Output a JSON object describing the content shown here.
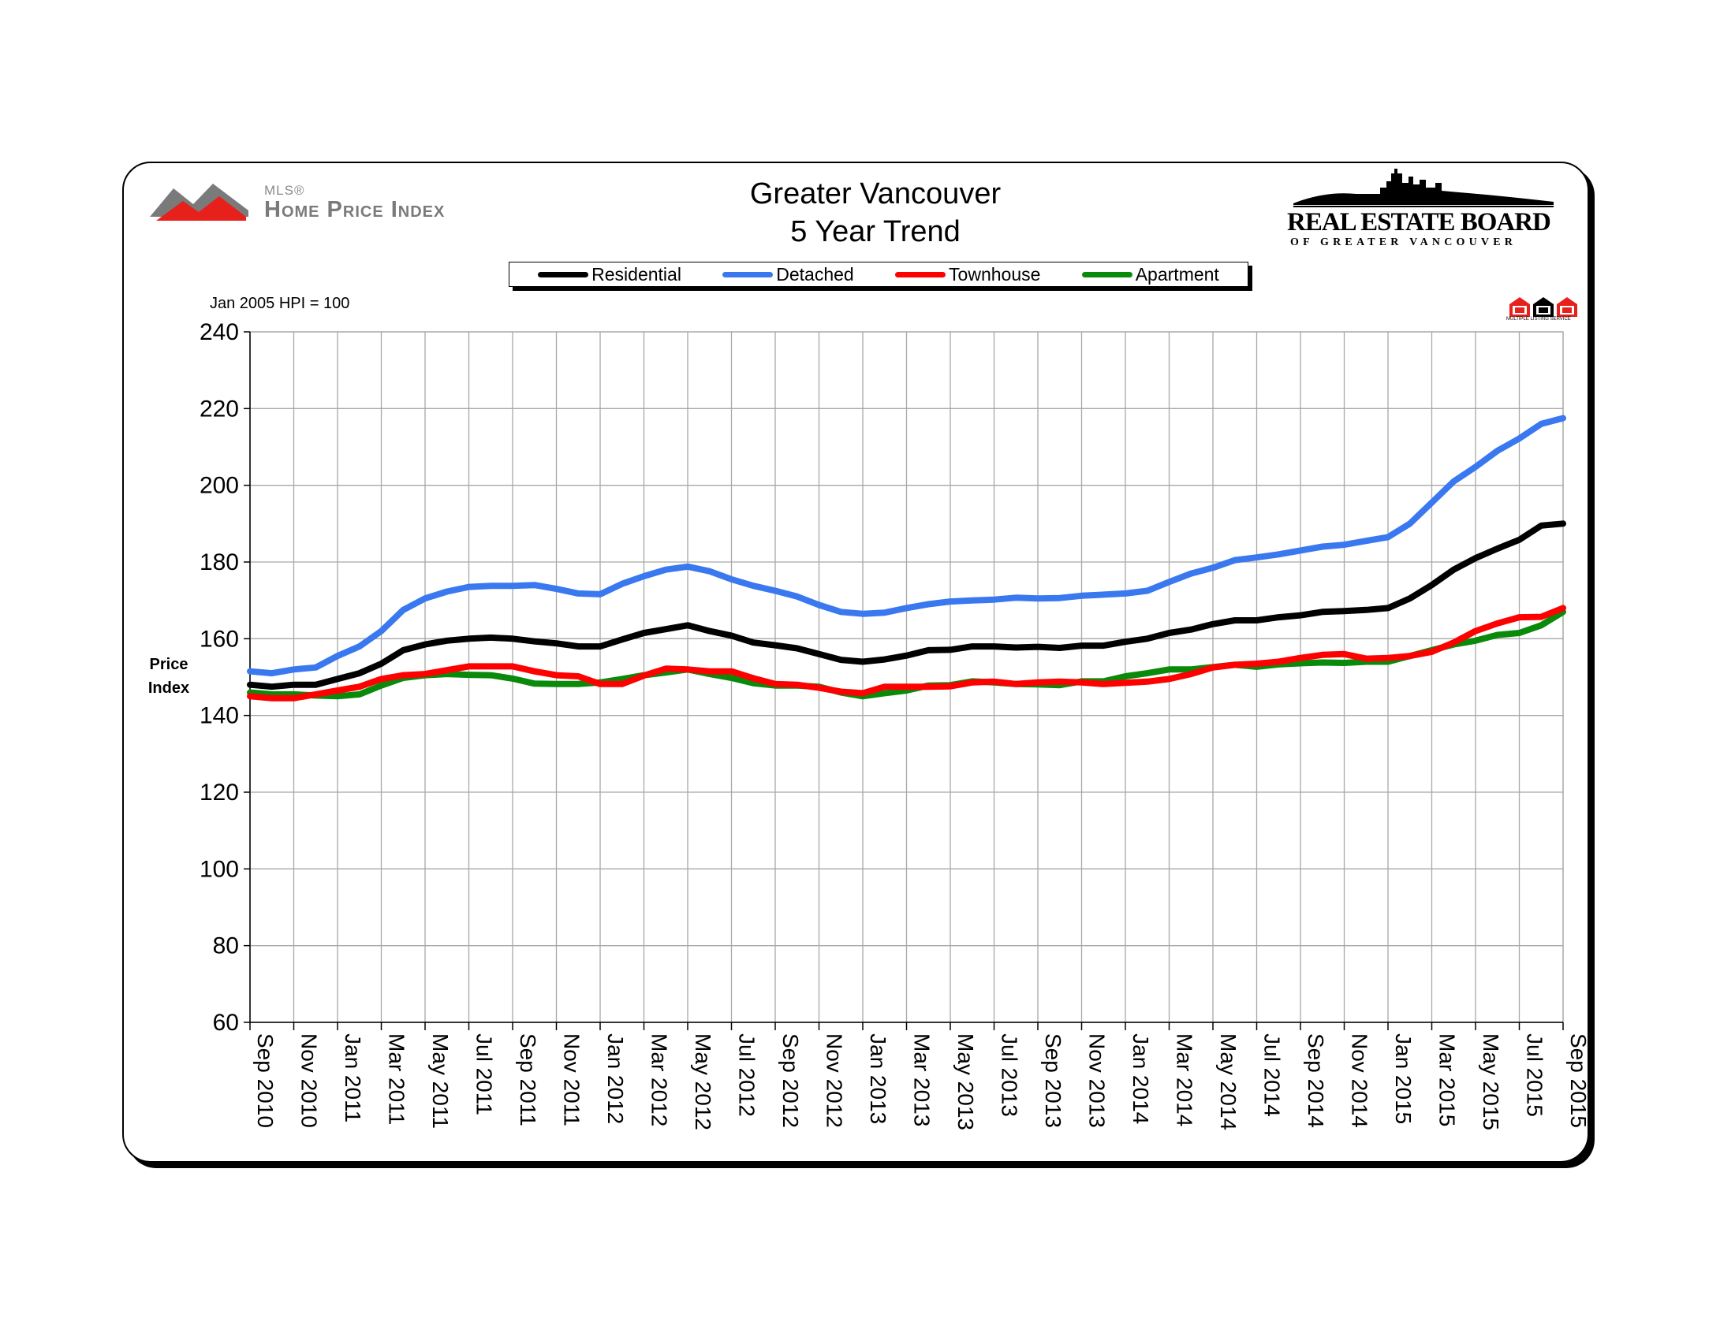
{
  "header": {
    "title_line1": "Greater Vancouver",
    "title_line2": "5 Year Trend",
    "hpi_note": "Jan 2005 HPI = 100",
    "ylabel_line1": "Price",
    "ylabel_line2": "Index"
  },
  "logos": {
    "mls_hpi_super": "MLS®",
    "mls_hpi_main": "Home Price Index",
    "reb_main": "REAL ESTATE BOARD",
    "reb_sub": "OF GREATER VANCOUVER",
    "mls_badge_text": "MULTIPLE LISTING SERVICE"
  },
  "chart_data": {
    "type": "line",
    "title": "Greater Vancouver 5 Year Trend",
    "ylabel": "Price Index",
    "xlabel": "",
    "ylim": [
      60,
      240
    ],
    "yticks": [
      60,
      80,
      100,
      120,
      140,
      160,
      180,
      200,
      220,
      240
    ],
    "grid": true,
    "legend_position": "top-center",
    "x_tick_labels": [
      "Sep 2010",
      "Nov 2010",
      "Jan 2011",
      "Mar 2011",
      "May 2011",
      "Jul 2011",
      "Sep 2011",
      "Nov 2011",
      "Jan 2012",
      "Mar 2012",
      "May 2012",
      "Jul 2012",
      "Sep 2012",
      "Nov 2012",
      "Jan 2013",
      "Mar 2013",
      "May 2013",
      "Jul 2013",
      "Sep 2013",
      "Nov 2013",
      "Jan 2014",
      "Mar 2014",
      "May 2014",
      "Jul 2014",
      "Sep 2014",
      "Nov 2014",
      "Jan 2015",
      "Mar 2015",
      "May 2015",
      "Jul 2015",
      "Sep 2015"
    ],
    "x": [
      "Sep 2010",
      "Oct 2010",
      "Nov 2010",
      "Dec 2010",
      "Jan 2011",
      "Feb 2011",
      "Mar 2011",
      "Apr 2011",
      "May 2011",
      "Jun 2011",
      "Jul 2011",
      "Aug 2011",
      "Sep 2011",
      "Oct 2011",
      "Nov 2011",
      "Dec 2011",
      "Jan 2012",
      "Feb 2012",
      "Mar 2012",
      "Apr 2012",
      "May 2012",
      "Jun 2012",
      "Jul 2012",
      "Aug 2012",
      "Sep 2012",
      "Oct 2012",
      "Nov 2012",
      "Dec 2012",
      "Jan 2013",
      "Feb 2013",
      "Mar 2013",
      "Apr 2013",
      "May 2013",
      "Jun 2013",
      "Jul 2013",
      "Aug 2013",
      "Sep 2013",
      "Oct 2013",
      "Nov 2013",
      "Dec 2013",
      "Jan 2014",
      "Feb 2014",
      "Mar 2014",
      "Apr 2014",
      "May 2014",
      "Jun 2014",
      "Jul 2014",
      "Aug 2014",
      "Sep 2014",
      "Oct 2014",
      "Nov 2014",
      "Dec 2014",
      "Jan 2015",
      "Feb 2015",
      "Mar 2015",
      "Apr 2015",
      "May 2015",
      "Jun 2015",
      "Jul 2015",
      "Aug 2015",
      "Sep 2015"
    ],
    "series": [
      {
        "name": "Residential",
        "color": "#000000",
        "values": [
          148,
          147.5,
          148,
          148,
          149.5,
          151,
          153.5,
          157,
          158.5,
          159.5,
          160,
          160.3,
          160,
          159.3,
          158.8,
          158,
          158,
          159.8,
          161.5,
          162.5,
          163.5,
          162,
          160.8,
          159,
          158.3,
          157.5,
          156,
          154.5,
          154,
          154.6,
          155.6,
          157,
          157.1,
          158,
          158,
          157.7,
          157.9,
          157.6,
          158.2,
          158.2,
          159.2,
          160,
          161.5,
          162.4,
          163.8,
          164.8,
          164.8,
          165.6,
          166.1,
          167,
          167.2,
          167.5,
          168,
          170.5,
          174,
          178,
          181,
          183.5,
          185.8,
          189.5,
          190
        ]
      },
      {
        "name": "Detached",
        "color": "#3a78f0",
        "values": [
          151.5,
          151,
          152,
          152.5,
          155.5,
          158,
          162,
          167.5,
          170.5,
          172.3,
          173.5,
          173.8,
          173.8,
          174,
          173,
          171.8,
          171.6,
          174.3,
          176.3,
          178,
          178.8,
          177.6,
          175.5,
          173.8,
          172.5,
          171,
          168.8,
          167,
          166.5,
          166.8,
          168,
          169,
          169.7,
          170,
          170.2,
          170.7,
          170.5,
          170.6,
          171.2,
          171.5,
          171.8,
          172.5,
          174.8,
          177,
          178.5,
          180.5,
          181.2,
          182,
          183,
          184,
          184.5,
          185.5,
          186.5,
          190,
          195.5,
          201,
          204.8,
          209,
          212.2,
          216,
          217.5
        ]
      },
      {
        "name": "Townhouse",
        "color": "#ff0000",
        "values": [
          145,
          144.5,
          144.5,
          145.5,
          146.5,
          147.5,
          149.5,
          150.5,
          150.8,
          151.8,
          152.8,
          152.8,
          152.8,
          151.5,
          150.5,
          150.2,
          148.2,
          148.2,
          150.4,
          152.2,
          152,
          151.5,
          151.5,
          149.7,
          148.2,
          148,
          147.2,
          146.2,
          145.8,
          147.5,
          147.5,
          147.5,
          147.6,
          148.6,
          148.8,
          148.2,
          148.6,
          148.8,
          148.6,
          148.2,
          148.5,
          148.8,
          149.5,
          150.8,
          152.5,
          153.2,
          153.5,
          154,
          155,
          155.8,
          156,
          154.8,
          155,
          155.5,
          156.6,
          159,
          162,
          164,
          165.6,
          165.7,
          168
        ]
      },
      {
        "name": "Apartment",
        "color": "#0a8a0a",
        "values": [
          146,
          145.5,
          145.5,
          145.2,
          145,
          145.5,
          147.8,
          149.8,
          150.5,
          150.8,
          150.6,
          150.5,
          149.6,
          148.3,
          148.2,
          148.2,
          148.6,
          149.5,
          150.5,
          151.2,
          152,
          150.8,
          149.8,
          148.4,
          147.8,
          147.8,
          147.5,
          146,
          145,
          145.8,
          146.5,
          147.8,
          147.9,
          148.9,
          148.6,
          148.2,
          148.1,
          147.9,
          148.9,
          148.9,
          150.2,
          151,
          152,
          152,
          152.6,
          153.2,
          152.7,
          153.3,
          153.6,
          153.8,
          153.7,
          154,
          154,
          155.5,
          157,
          158.5,
          159.5,
          161,
          161.5,
          163.5,
          167
        ]
      }
    ]
  }
}
